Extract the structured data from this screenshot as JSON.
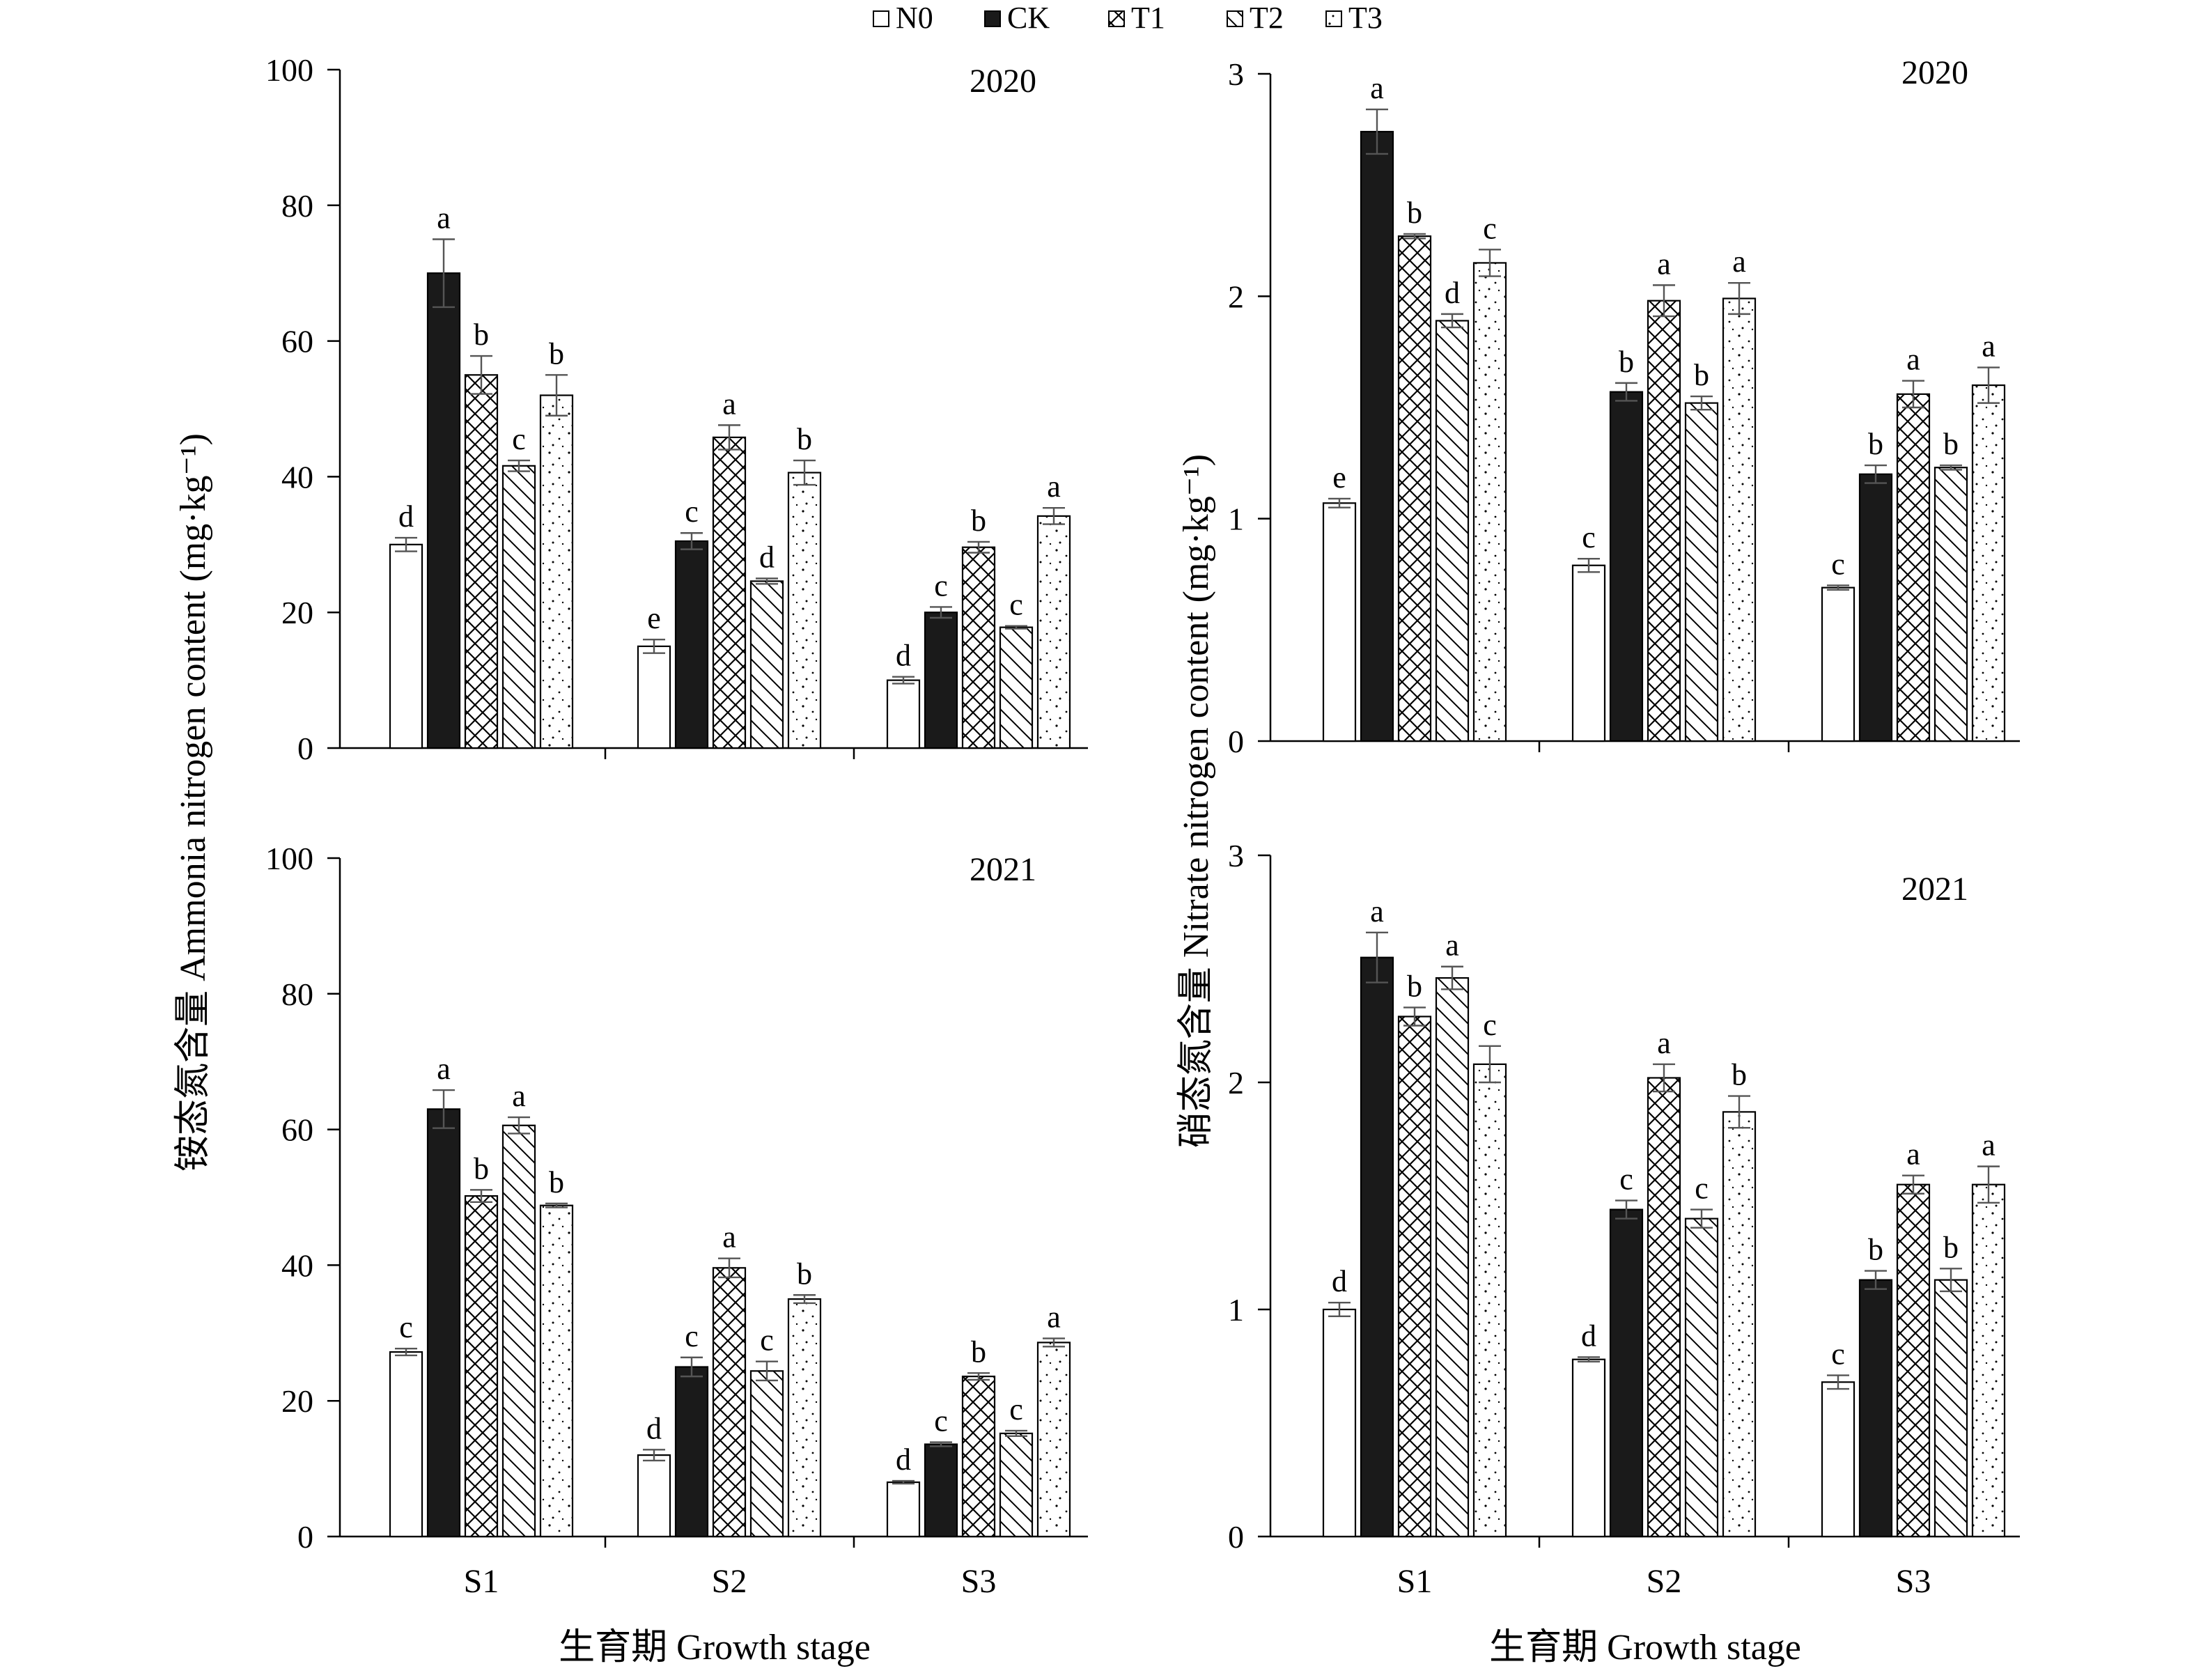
{
  "legend": {
    "items": [
      {
        "key": "N0",
        "pattern": "empty"
      },
      {
        "key": "CK",
        "pattern": "solid"
      },
      {
        "key": "T1",
        "pattern": "crosshatch"
      },
      {
        "key": "T2",
        "pattern": "diagonal"
      },
      {
        "key": "T3",
        "pattern": "dots"
      }
    ]
  },
  "colors": {
    "axis": "#000000",
    "bar_fill": "#ffffff",
    "solid": "#1a1a1a",
    "error_bar": "#555555"
  },
  "shared_labels": {
    "xlabel": "生育期 Growth stage",
    "ylabel_left": "铵态氮含量 Ammonia nitrogen content (mg·kg⁻¹)",
    "ylabel_right": "硝态氮含量 Nitrate nitrogen content (mg·kg⁻¹)"
  },
  "chart_data": [
    {
      "type": "bar",
      "id": "ammonia-2020",
      "annotation": "2020",
      "categories": [
        "S1",
        "S2",
        "S3"
      ],
      "ylim": [
        0,
        100
      ],
      "yticks": [
        0,
        20,
        40,
        60,
        80,
        100
      ],
      "series": [
        {
          "name": "N0",
          "values": [
            30,
            15,
            10
          ],
          "errors": [
            1,
            1,
            0.5
          ],
          "letters": [
            "d",
            "e",
            "d"
          ]
        },
        {
          "name": "CK",
          "values": [
            70,
            30.5,
            20
          ],
          "errors": [
            5,
            1.2,
            0.8
          ],
          "letters": [
            "a",
            "c",
            "c"
          ]
        },
        {
          "name": "T1",
          "values": [
            55,
            45.8,
            29.6
          ],
          "errors": [
            2.8,
            1.8,
            0.8
          ],
          "letters": [
            "b",
            "a",
            "b"
          ]
        },
        {
          "name": "T2",
          "values": [
            41.6,
            24.6,
            17.8
          ],
          "errors": [
            0.8,
            0.4,
            0.2
          ],
          "letters": [
            "c",
            "d",
            "c"
          ]
        },
        {
          "name": "T3",
          "values": [
            52,
            40.6,
            34.2
          ],
          "errors": [
            3,
            1.8,
            1.2
          ],
          "letters": [
            "b",
            "b",
            "a"
          ]
        }
      ]
    },
    {
      "type": "bar",
      "id": "nitrate-2020",
      "annotation": "2020",
      "categories": [
        "S1",
        "S2",
        "S3"
      ],
      "ylim": [
        0,
        3
      ],
      "yticks": [
        0,
        1,
        2,
        3
      ],
      "series": [
        {
          "name": "N0",
          "values": [
            1.07,
            0.79,
            0.69
          ],
          "errors": [
            0.02,
            0.03,
            0.01
          ],
          "letters": [
            "e",
            "c",
            "c"
          ]
        },
        {
          "name": "CK",
          "values": [
            2.74,
            1.57,
            1.2
          ],
          "errors": [
            0.1,
            0.04,
            0.04
          ],
          "letters": [
            "a",
            "b",
            "b"
          ]
        },
        {
          "name": "T1",
          "values": [
            2.27,
            1.98,
            1.56
          ],
          "errors": [
            0.01,
            0.07,
            0.06
          ],
          "letters": [
            "b",
            "a",
            "a"
          ]
        },
        {
          "name": "T2",
          "values": [
            1.89,
            1.52,
            1.23
          ],
          "errors": [
            0.03,
            0.03,
            0.01
          ],
          "letters": [
            "d",
            "b",
            "b"
          ]
        },
        {
          "name": "T3",
          "values": [
            2.15,
            1.99,
            1.6
          ],
          "errors": [
            0.06,
            0.07,
            0.08
          ],
          "letters": [
            "c",
            "a",
            "a"
          ]
        }
      ]
    },
    {
      "type": "bar",
      "id": "ammonia-2021",
      "annotation": "2021",
      "categories": [
        "S1",
        "S2",
        "S3"
      ],
      "ylim": [
        0,
        100
      ],
      "yticks": [
        0,
        20,
        40,
        60,
        80,
        100
      ],
      "series": [
        {
          "name": "N0",
          "values": [
            27.2,
            12,
            8
          ],
          "errors": [
            0.5,
            0.8,
            0.2
          ],
          "letters": [
            "c",
            "d",
            "d"
          ]
        },
        {
          "name": "CK",
          "values": [
            63,
            25,
            13.6
          ],
          "errors": [
            2.8,
            1.4,
            0.3
          ],
          "letters": [
            "a",
            "c",
            "c"
          ]
        },
        {
          "name": "T1",
          "values": [
            50.2,
            39.6,
            23.6
          ],
          "errors": [
            0.9,
            1.4,
            0.5
          ],
          "letters": [
            "b",
            "a",
            "b"
          ]
        },
        {
          "name": "T2",
          "values": [
            60.6,
            24.4,
            15.2
          ],
          "errors": [
            1.2,
            1.4,
            0.4
          ],
          "letters": [
            "a",
            "c",
            "c"
          ]
        },
        {
          "name": "T3",
          "values": [
            48.8,
            35,
            28.6
          ],
          "errors": [
            0.3,
            0.6,
            0.6
          ],
          "letters": [
            "b",
            "b",
            "a"
          ]
        }
      ]
    },
    {
      "type": "bar",
      "id": "nitrate-2021",
      "annotation": "2021",
      "categories": [
        "S1",
        "S2",
        "S3"
      ],
      "ylim": [
        0,
        3
      ],
      "yticks": [
        0,
        1,
        2,
        3
      ],
      "series": [
        {
          "name": "N0",
          "values": [
            1.0,
            0.78,
            0.68
          ],
          "errors": [
            0.03,
            0.01,
            0.03
          ],
          "letters": [
            "d",
            "d",
            "c"
          ]
        },
        {
          "name": "CK",
          "values": [
            2.55,
            1.44,
            1.13
          ],
          "errors": [
            0.11,
            0.04,
            0.04
          ],
          "letters": [
            "a",
            "c",
            "b"
          ]
        },
        {
          "name": "T1",
          "values": [
            2.29,
            2.02,
            1.55
          ],
          "errors": [
            0.04,
            0.06,
            0.04
          ],
          "letters": [
            "b",
            "a",
            "a"
          ]
        },
        {
          "name": "T2",
          "values": [
            2.46,
            1.4,
            1.13
          ],
          "errors": [
            0.05,
            0.04,
            0.05
          ],
          "letters": [
            "a",
            "c",
            "b"
          ]
        },
        {
          "name": "T3",
          "values": [
            2.08,
            1.87,
            1.55
          ],
          "errors": [
            0.08,
            0.07,
            0.08
          ],
          "letters": [
            "c",
            "b",
            "a"
          ]
        }
      ]
    }
  ]
}
